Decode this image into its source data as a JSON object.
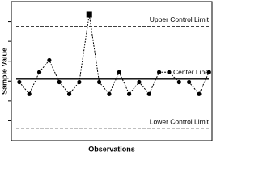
{
  "chart_data": {
    "type": "control",
    "y_label": "Sample Value",
    "x_label": "Observations",
    "x": [
      1,
      2,
      3,
      4,
      5,
      6,
      7,
      8,
      9,
      10,
      11,
      12,
      13,
      14,
      15,
      16,
      17,
      18,
      19,
      20
    ],
    "values": [
      2.95,
      2.35,
      3.45,
      4.05,
      2.95,
      2.35,
      2.95,
      6.35,
      2.95,
      2.35,
      3.45,
      2.35,
      2.95,
      2.35,
      3.45,
      3.45,
      2.95,
      2.95,
      2.35,
      3.45
    ],
    "out_of_control_index": 7,
    "color": "#000000",
    "xlim": [
      0.2,
      20.3
    ],
    "ylim": [
      0,
      7
    ],
    "yticks": [
      1,
      2,
      3,
      4,
      5,
      6
    ],
    "lines": [
      {
        "label": "Upper Control Limit",
        "value": 5.75,
        "style": "dashed"
      },
      {
        "label": "Center Line",
        "value": 3.1,
        "style": "solid"
      },
      {
        "label": "Lower Control Limit",
        "value": 0.6,
        "style": "dashed"
      }
    ]
  }
}
